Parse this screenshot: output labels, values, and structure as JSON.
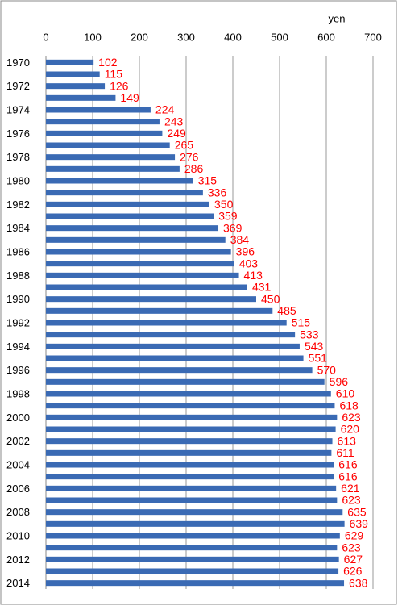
{
  "chart_data": {
    "type": "hbar",
    "x_label": "yen",
    "categories": [
      "1970",
      null,
      "1972",
      null,
      "1974",
      null,
      "1976",
      null,
      "1978",
      null,
      "1980",
      null,
      "1982",
      null,
      "1984",
      null,
      "1986",
      null,
      "1988",
      null,
      "1990",
      null,
      "1992",
      null,
      "1994",
      null,
      "1996",
      null,
      "1998",
      null,
      "2000",
      null,
      "2002",
      null,
      "2004",
      null,
      "2006",
      null,
      "2008",
      null,
      "2010",
      null,
      "2012",
      null,
      "2014"
    ],
    "values": [
      102,
      115,
      126,
      149,
      224,
      243,
      249,
      265,
      276,
      286,
      315,
      336,
      350,
      359,
      369,
      384,
      396,
      403,
      413,
      431,
      450,
      485,
      515,
      533,
      543,
      551,
      570,
      596,
      610,
      618,
      623,
      620,
      613,
      611,
      616,
      616,
      621,
      623,
      635,
      639,
      629,
      623,
      627,
      626,
      638
    ],
    "color": "#3a6ab4",
    "label_color": "#ff0000",
    "xlim": [
      0,
      700
    ],
    "xticks": [
      0,
      100,
      200,
      300,
      400,
      500,
      600,
      700
    ],
    "grid": true
  }
}
